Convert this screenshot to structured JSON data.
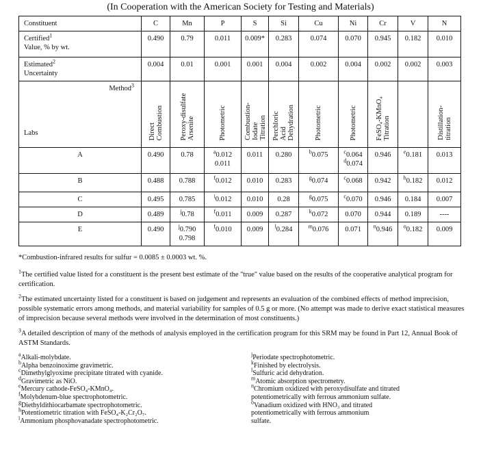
{
  "title": "(In Cooperation with the American Society for Testing and Materials)",
  "table": {
    "constituent_label": "Constituent",
    "elements": [
      "C",
      "Mn",
      "P",
      "S",
      "Si",
      "Cu",
      "Ni",
      "Cr",
      "V",
      "N"
    ],
    "certified_label": "Certified",
    "certified_sup": "1",
    "certified_label2": "Value, % by wt.",
    "certified": [
      "0.490",
      "0.79",
      "0.011",
      "0.009*",
      "0.283",
      "0.074",
      "0.070",
      "0.945",
      "0.182",
      "0.010"
    ],
    "uncertainty_label": "Estimated",
    "uncertainty_sup": "2",
    "uncertainty_label2": "Uncertainty",
    "uncertainty": [
      "0.004",
      "0.01",
      "0.001",
      "0.001",
      "0.004",
      "0.002",
      "0.004",
      "0.002",
      "0.002",
      "0.003"
    ],
    "method_label": "Method",
    "method_sup": "3",
    "labs_label": "Labs",
    "methods": [
      "Direct\nCombustion",
      "Peroxy-disulfate\nArsenite",
      "Photometric",
      "Combustion-\nIodate\nTitration",
      "Perchloric\nAcid\nDehydration",
      "Photometric",
      "Photometric",
      "FeSO₄-KMnO₄\nTitration",
      "",
      "Distillation-\ntitration"
    ],
    "labs": [
      {
        "name": "A",
        "cells": [
          [
            {
              "v": "0.490"
            }
          ],
          [
            {
              "v": "0.78"
            }
          ],
          [
            {
              "s": "a",
              "v": "0.012"
            },
            {
              "v": "0.011"
            }
          ],
          [
            {
              "v": "0.011"
            }
          ],
          [
            {
              "v": "0.280"
            }
          ],
          [
            {
              "s": "b",
              "v": "0.075"
            }
          ],
          [
            {
              "s": "c",
              "v": "0.064"
            },
            {
              "s": "d",
              "v": "0.074"
            }
          ],
          [
            {
              "v": "0.946"
            }
          ],
          [
            {
              "s": "e",
              "v": "0.181"
            }
          ],
          [
            {
              "v": "0.013"
            }
          ]
        ]
      },
      {
        "name": "B",
        "cells": [
          [
            {
              "v": "0.488"
            }
          ],
          [
            {
              "v": "0.788"
            }
          ],
          [
            {
              "s": "f",
              "v": "0.012"
            }
          ],
          [
            {
              "v": "0.010"
            }
          ],
          [
            {
              "v": "0.283"
            }
          ],
          [
            {
              "s": "g",
              "v": "0.074"
            }
          ],
          [
            {
              "s": "c",
              "v": "0.068"
            }
          ],
          [
            {
              "v": "0.942"
            }
          ],
          [
            {
              "s": "h",
              "v": "0.182"
            }
          ],
          [
            {
              "v": "0.012"
            }
          ]
        ]
      },
      {
        "name": "C",
        "cells": [
          [
            {
              "v": "0.495"
            }
          ],
          [
            {
              "v": "0.785"
            }
          ],
          [
            {
              "s": "i",
              "v": "0.012"
            }
          ],
          [
            {
              "v": "0.010"
            }
          ],
          [
            {
              "v": "0.28"
            }
          ],
          [
            {
              "s": "g",
              "v": "0.075"
            }
          ],
          [
            {
              "s": "c",
              "v": "0.070"
            }
          ],
          [
            {
              "v": "0.946"
            }
          ],
          [
            {
              "v": "0.184"
            }
          ],
          [
            {
              "v": "0.007"
            }
          ]
        ]
      },
      {
        "name": "D",
        "cells": [
          [
            {
              "v": "0.489"
            }
          ],
          [
            {
              "s": "j",
              "v": "0.78"
            }
          ],
          [
            {
              "s": "f",
              "v": "0.011"
            }
          ],
          [
            {
              "v": "0.009"
            }
          ],
          [
            {
              "v": "0.287"
            }
          ],
          [
            {
              "s": "k",
              "v": "0.072"
            }
          ],
          [
            {
              "v": "0.070"
            }
          ],
          [
            {
              "v": "0.944"
            }
          ],
          [
            {
              "v": "0.189"
            }
          ],
          [
            {
              "v": "----"
            }
          ]
        ]
      },
      {
        "name": "E",
        "cells": [
          [
            {
              "v": "0.490"
            }
          ],
          [
            {
              "s": "j",
              "v": "0.790"
            },
            {
              "v": "0.798"
            }
          ],
          [
            {
              "s": "f",
              "v": "0.010"
            }
          ],
          [
            {
              "v": "0.009"
            }
          ],
          [
            {
              "s": "l",
              "v": "0.284"
            }
          ],
          [
            {
              "s": "m",
              "v": "0.076"
            }
          ],
          [
            {
              "v": "0.071"
            }
          ],
          [
            {
              "s": "n",
              "v": "0.946"
            }
          ],
          [
            {
              "s": "o",
              "v": "0.182"
            }
          ],
          [
            {
              "v": "0.009"
            }
          ]
        ]
      }
    ]
  },
  "notes": {
    "star": "*Combustion-infrared results for sulfur = 0.0085 ± 0.0003 wt. %.",
    "n1_sup": "1",
    "n1": "The certified value listed for a constituent is the present best estimate of the \"true\" value based on the results of the cooperative analytical program for certification.",
    "n2_sup": "2",
    "n2": "The estimated uncertainty listed for a constituent is based on judgement and represents an evaluation of the combined effects of method imprecision, possible systematic errors among methods, and material variability for samples of 0.5 g or more.  (No attempt was made to derive exact statistical measures of imprecision because several methods were involved in the determination of most constituents.)",
    "n3_sup": "3",
    "n3": "A detailed description of many of the methods of analysis employed in the certification program for this SRM may be found in Part 12, Annual Book of ASTM Standards."
  },
  "footnotes_left": [
    {
      "s": "a",
      "t": "Alkali-molybdate."
    },
    {
      "s": "b",
      "t": "Alpha benzoinoxime gravimetric."
    },
    {
      "s": "c",
      "t": "Dimethylglyoxime precipitate titrated with cyanide."
    },
    {
      "s": "d",
      "t": "Gravimetric as NiO."
    },
    {
      "s": "e",
      "t": "Mercury cathode-FeSO₄-KMnO₄."
    },
    {
      "s": "f",
      "t": "Molybdenum-blue spectrophotometric."
    },
    {
      "s": "g",
      "t": "Diethyldithiocarbamate spectrophotometric."
    },
    {
      "s": "h",
      "t": "Potentiometric titration with FeSO₄-K₂Cr₂O₇."
    },
    {
      "s": "i",
      "t": "Ammonium phosphovanadate spectrophotometric."
    }
  ],
  "footnotes_right": [
    {
      "s": "j",
      "t": "Periodate spectrophotometric."
    },
    {
      "s": "k",
      "t": "Finished by electrolysis."
    },
    {
      "s": "l",
      "t": "Sulfuric acid dehydration."
    },
    {
      "s": "m",
      "t": "Atomic absorption spectrometry."
    },
    {
      "s": "n",
      "t": "Chromium oxidized with peroxydisulfate and titrated\npotentiometrically with ferrous ammonium sulfate."
    },
    {
      "s": "o",
      "t": "Vanadium oxidized with HNO₃ and titrated\npotentiometrically with ferrous ammonium\nsulfate."
    }
  ]
}
